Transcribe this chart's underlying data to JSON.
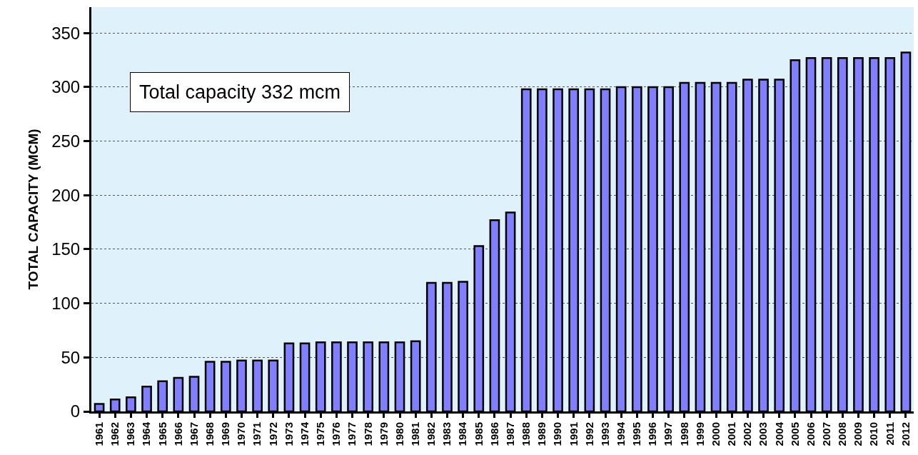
{
  "chart_data": {
    "type": "bar",
    "ylabel": "TOTAL CAPACITY (MCM)",
    "categories": [
      "1961",
      "1962",
      "1963",
      "1964",
      "1965",
      "1966",
      "1967",
      "1968",
      "1969",
      "1970",
      "1971",
      "1972",
      "1973",
      "1974",
      "1975",
      "1976",
      "1977",
      "1978",
      "1979",
      "1980",
      "1981",
      "1982",
      "1983",
      "1984",
      "1985",
      "1986",
      "1987",
      "1988",
      "1989",
      "1990",
      "1991",
      "1992",
      "1993",
      "1994",
      "1995",
      "1996",
      "1997",
      "1998",
      "1999",
      "2000",
      "2001",
      "2002",
      "2003",
      "2004",
      "2005",
      "2006",
      "2007",
      "2008",
      "2009",
      "2010",
      "2011",
      "2012"
    ],
    "values": [
      7,
      11,
      13,
      23,
      28,
      31,
      32,
      46,
      46,
      47,
      47,
      47,
      63,
      63,
      64,
      64,
      64,
      64,
      64,
      64,
      65,
      119,
      119,
      120,
      153,
      177,
      184,
      298,
      298,
      298,
      298,
      298,
      298,
      300,
      300,
      300,
      300,
      304,
      304,
      304,
      304,
      307,
      307,
      307,
      325,
      327,
      327,
      327,
      327,
      327,
      327,
      332
    ],
    "color": "#8080ff",
    "ylim": [
      0,
      374
    ],
    "yticks": [
      0,
      50,
      100,
      150,
      200,
      250,
      300,
      350
    ],
    "grid": "y",
    "annotations": [
      "Total capacity 332 mcm"
    ]
  }
}
